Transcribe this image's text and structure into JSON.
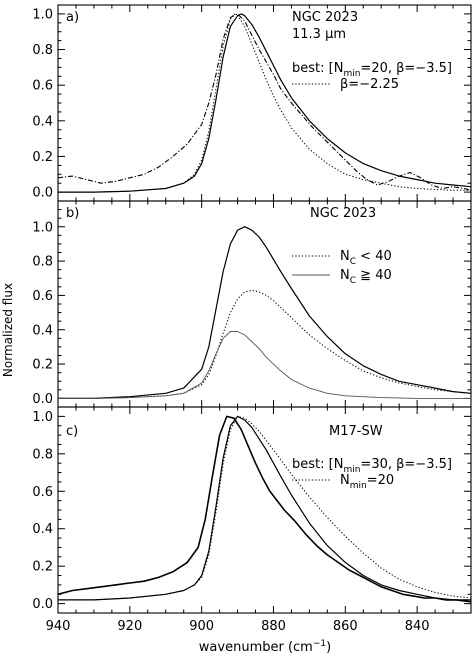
{
  "figure": {
    "ylabel": "Normalized flux",
    "xlabel": "wavenumber (cm",
    "xlabel_sup": "−1",
    "xlabel_end": ")",
    "xticklabels": [
      "940",
      "920",
      "900",
      "880",
      "860",
      "840"
    ]
  },
  "chart_data": [
    {
      "type": "line",
      "panel_label": "a)",
      "annotations": [
        "NGC 2023",
        "11.3 μm"
      ],
      "legend": {
        "prefix": "best: [N",
        "sub": "min",
        "suffix": "=20, β=−3.5]",
        "dotted_label": "β=−2.25"
      },
      "xlim": [
        940,
        825
      ],
      "ylim": [
        -0.05,
        1.05
      ],
      "yticks": [
        0.0,
        0.2,
        0.4,
        0.6,
        0.8,
        1.0
      ],
      "yticklabels": [
        "0.0",
        "0.2",
        "0.4",
        "0.6",
        "0.8",
        "1.0"
      ],
      "series": [
        {
          "role": "observed",
          "style": "dash-dot",
          "color": "#000000",
          "x": [
            940,
            936,
            932,
            928,
            924,
            920,
            916,
            912,
            908,
            904,
            900,
            898,
            896,
            894,
            892,
            890,
            888,
            886,
            884,
            882,
            880,
            878,
            875,
            872,
            869,
            866,
            863,
            860,
            857,
            854,
            851,
            848,
            845,
            842,
            839,
            836,
            833,
            830,
            827,
            825
          ],
          "y": [
            0.08,
            0.09,
            0.07,
            0.05,
            0.06,
            0.08,
            0.1,
            0.14,
            0.2,
            0.27,
            0.38,
            0.5,
            0.66,
            0.86,
            0.98,
            1.0,
            0.96,
            0.88,
            0.8,
            0.73,
            0.66,
            0.58,
            0.5,
            0.43,
            0.36,
            0.3,
            0.24,
            0.18,
            0.12,
            0.07,
            0.04,
            0.06,
            0.09,
            0.11,
            0.08,
            0.04,
            0.02,
            0.03,
            0.02,
            0.01
          ]
        },
        {
          "role": "best model",
          "style": "solid",
          "color": "#000000",
          "x": [
            940,
            930,
            920,
            910,
            905,
            902,
            900,
            898,
            896,
            894,
            892,
            890,
            889,
            888,
            886,
            884,
            882,
            880,
            878,
            875,
            870,
            865,
            860,
            855,
            850,
            845,
            840,
            835,
            830,
            825
          ],
          "y": [
            0.0,
            0.0,
            0.005,
            0.02,
            0.05,
            0.09,
            0.16,
            0.3,
            0.52,
            0.76,
            0.93,
            0.99,
            1.0,
            0.99,
            0.94,
            0.87,
            0.79,
            0.71,
            0.63,
            0.53,
            0.4,
            0.3,
            0.22,
            0.16,
            0.12,
            0.09,
            0.07,
            0.05,
            0.04,
            0.03
          ]
        },
        {
          "role": "β=−2.25 model",
          "style": "dotted",
          "color": "#000000",
          "x": [
            940,
            930,
            920,
            910,
            905,
            902,
            900,
            898,
            896,
            894,
            892,
            891,
            890,
            888,
            886,
            884,
            882,
            880,
            878,
            875,
            870,
            865,
            860,
            855,
            850,
            845,
            840,
            835,
            830,
            825
          ],
          "y": [
            0.0,
            0.0,
            0.005,
            0.02,
            0.05,
            0.1,
            0.18,
            0.34,
            0.58,
            0.82,
            0.97,
            1.0,
            0.99,
            0.93,
            0.83,
            0.73,
            0.63,
            0.54,
            0.46,
            0.36,
            0.24,
            0.16,
            0.1,
            0.07,
            0.05,
            0.03,
            0.02,
            0.015,
            0.01,
            0.01
          ]
        }
      ]
    },
    {
      "type": "line",
      "panel_label": "b)",
      "annotations": [
        "NGC 2023"
      ],
      "legend": {
        "dotted_prefix": "N",
        "dotted_sub": "C",
        "dotted_suffix": " < 40",
        "solid_prefix": "N",
        "solid_sub": "C",
        "solid_suffix": " ≧ 40"
      },
      "xlim": [
        940,
        825
      ],
      "ylim": [
        -0.05,
        1.15
      ],
      "yticks": [
        0.0,
        0.2,
        0.4,
        0.6,
        0.8,
        1.0
      ],
      "yticklabels": [
        "0.0",
        "0.2",
        "0.4",
        "0.6",
        "0.8",
        "1.0"
      ],
      "series": [
        {
          "role": "total",
          "style": "solid",
          "color": "#000000",
          "x": [
            940,
            930,
            920,
            910,
            905,
            900,
            898,
            896,
            894,
            892,
            890,
            888,
            886,
            884,
            882,
            880,
            878,
            875,
            870,
            865,
            860,
            855,
            850,
            845,
            840,
            835,
            830,
            825
          ],
          "y": [
            0.0,
            0.0,
            0.01,
            0.03,
            0.06,
            0.17,
            0.3,
            0.52,
            0.74,
            0.9,
            0.98,
            1.0,
            0.98,
            0.94,
            0.88,
            0.81,
            0.74,
            0.64,
            0.48,
            0.36,
            0.26,
            0.19,
            0.14,
            0.1,
            0.08,
            0.06,
            0.04,
            0.03
          ]
        },
        {
          "role": "NC < 40",
          "style": "dotted",
          "color": "#000000",
          "x": [
            940,
            930,
            920,
            910,
            905,
            900,
            898,
            896,
            894,
            892,
            890,
            888,
            886,
            884,
            882,
            880,
            878,
            875,
            870,
            865,
            860,
            855,
            850,
            845,
            840,
            835,
            830,
            825
          ],
          "y": [
            0.0,
            0.0,
            0.005,
            0.015,
            0.03,
            0.08,
            0.14,
            0.25,
            0.38,
            0.5,
            0.58,
            0.62,
            0.63,
            0.62,
            0.6,
            0.57,
            0.53,
            0.47,
            0.37,
            0.29,
            0.22,
            0.16,
            0.12,
            0.09,
            0.07,
            0.05,
            0.04,
            0.03
          ]
        },
        {
          "role": "NC ≧ 40",
          "style": "solid-thin",
          "color": "#555555",
          "x": [
            940,
            930,
            920,
            910,
            905,
            900,
            898,
            896,
            894,
            892,
            890,
            888,
            886,
            884,
            882,
            880,
            878,
            875,
            870,
            865,
            860,
            855,
            850,
            840,
            825
          ],
          "y": [
            0.0,
            0.0,
            0.005,
            0.015,
            0.03,
            0.09,
            0.16,
            0.26,
            0.35,
            0.39,
            0.39,
            0.37,
            0.33,
            0.29,
            0.24,
            0.2,
            0.16,
            0.11,
            0.06,
            0.03,
            0.015,
            0.01,
            0.005,
            0.0,
            0.0
          ]
        }
      ]
    },
    {
      "type": "line",
      "panel_label": "c)",
      "annotations": [
        "M17-SW"
      ],
      "legend": {
        "prefix": "best: [N",
        "sub": "min",
        "suffix": "=30, β=−3.5]",
        "dotted_prefix": "N",
        "dotted_sub": "min",
        "dotted_suffix": "=20"
      },
      "xlim": [
        940,
        825
      ],
      "ylim": [
        -0.05,
        1.05
      ],
      "yticks": [
        0.0,
        0.2,
        0.4,
        0.6,
        0.8,
        1.0
      ],
      "yticklabels": [
        "0.0",
        "0.2",
        "0.4",
        "0.6",
        "0.8",
        "1.0"
      ],
      "series": [
        {
          "role": "observed",
          "style": "solid-thick",
          "color": "#000000",
          "x": [
            940,
            936,
            932,
            928,
            924,
            920,
            916,
            912,
            908,
            904,
            901,
            899,
            897,
            895,
            893,
            891,
            889,
            887,
            885,
            883,
            881,
            879,
            877,
            874,
            871,
            868,
            865,
            862,
            859,
            856,
            853,
            850,
            847,
            844,
            841,
            838,
            835,
            832,
            829,
            825
          ],
          "y": [
            0.05,
            0.07,
            0.08,
            0.09,
            0.1,
            0.11,
            0.12,
            0.14,
            0.17,
            0.22,
            0.3,
            0.45,
            0.68,
            0.9,
            1.0,
            0.99,
            0.93,
            0.84,
            0.75,
            0.67,
            0.6,
            0.55,
            0.5,
            0.44,
            0.37,
            0.31,
            0.26,
            0.22,
            0.18,
            0.15,
            0.12,
            0.09,
            0.07,
            0.05,
            0.04,
            0.03,
            0.03,
            0.02,
            0.02,
            0.01
          ]
        },
        {
          "role": "best model",
          "style": "solid",
          "color": "#000000",
          "x": [
            940,
            930,
            920,
            910,
            905,
            902,
            900,
            898,
            896,
            894,
            892,
            890,
            888,
            886,
            884,
            882,
            880,
            878,
            875,
            870,
            865,
            860,
            855,
            850,
            845,
            840,
            835,
            830,
            825
          ],
          "y": [
            0.02,
            0.02,
            0.03,
            0.05,
            0.07,
            0.1,
            0.15,
            0.28,
            0.52,
            0.78,
            0.95,
            1.0,
            0.98,
            0.94,
            0.88,
            0.82,
            0.75,
            0.68,
            0.58,
            0.43,
            0.31,
            0.22,
            0.15,
            0.1,
            0.07,
            0.05,
            0.03,
            0.02,
            0.02
          ]
        },
        {
          "role": "Nmin=20 model",
          "style": "dotted",
          "color": "#000000",
          "x": [
            940,
            930,
            920,
            910,
            905,
            902,
            900,
            898,
            896,
            894,
            892,
            890,
            888,
            886,
            884,
            882,
            880,
            878,
            875,
            870,
            865,
            860,
            855,
            850,
            845,
            840,
            835,
            830,
            825
          ],
          "y": [
            0.02,
            0.02,
            0.03,
            0.05,
            0.07,
            0.1,
            0.14,
            0.26,
            0.49,
            0.75,
            0.93,
            1.0,
            0.99,
            0.96,
            0.92,
            0.87,
            0.82,
            0.77,
            0.69,
            0.57,
            0.46,
            0.36,
            0.27,
            0.19,
            0.13,
            0.09,
            0.06,
            0.04,
            0.03
          ]
        }
      ]
    }
  ]
}
